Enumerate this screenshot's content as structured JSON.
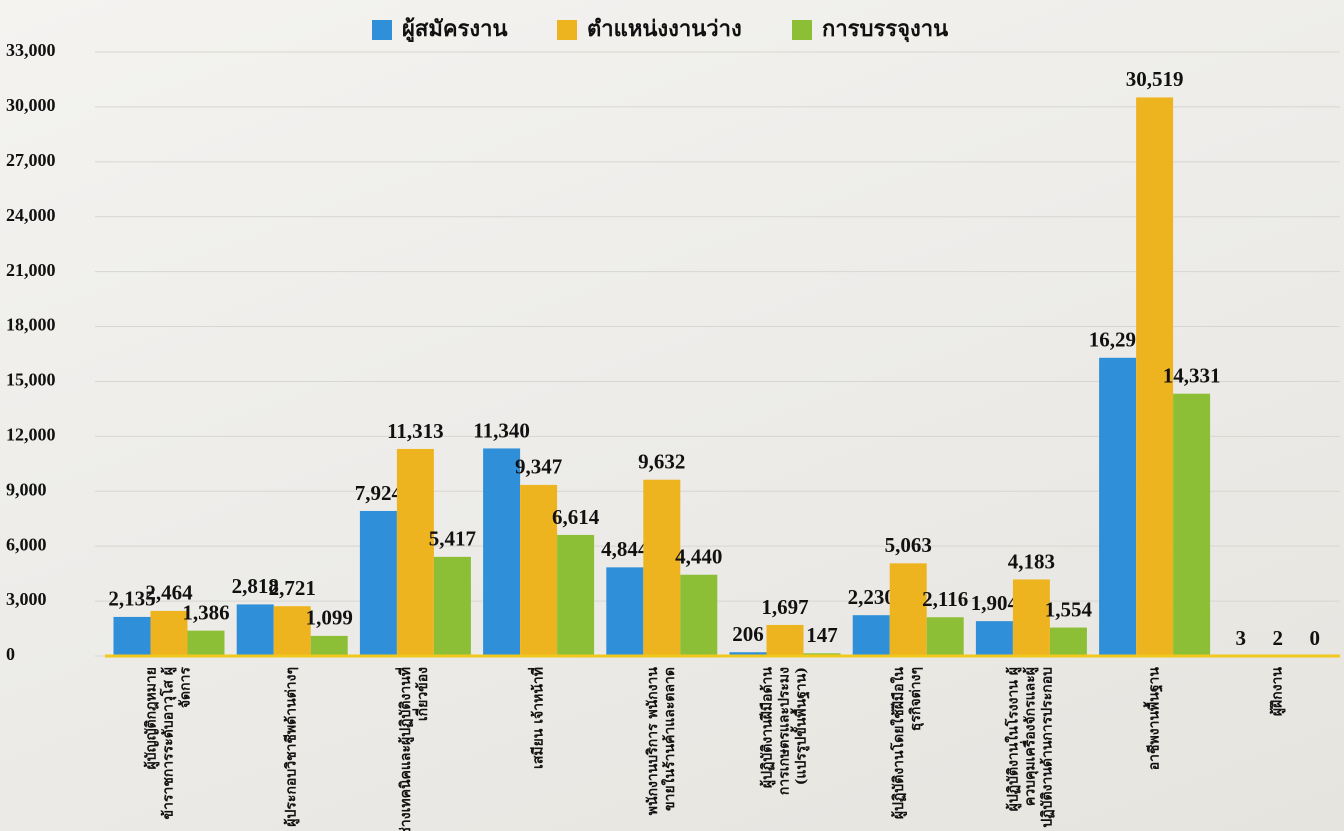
{
  "chart_data": {
    "type": "bar",
    "categories": [
      "ผู้บัญญัติกฎหมาย ข้าราชการระดับอาวุโส ผู้จัดการ",
      "ผู้ประกอบวิชาชีพด้านต่างๆ",
      "ช่างเทคนิคและผู้ปฏิบัติงานที่เกี่ยวข้อง",
      "เสมียน เจ้าหน้าที่",
      "พนักงานบริการ พนักงานขายในร้านค้าและตลาด",
      "ผู้ปฏิบัติงานฝีมือด้านการเกษตรและประมง (แปรรูปขั้นพื้นฐาน)",
      "ผู้ปฏิบัติงานโดยใช้ฝีมือในธุรกิจต่างๆ",
      "ผู้ปฏิบัติงานในโรงงาน ผู้ควบคุมเครื่องจักรและผู้ปฏิบัติงานด้านการประกอบ",
      "อาชีพงานพื้นฐาน",
      "ผู้ฝึกงาน"
    ],
    "series": [
      {
        "name": "ผู้สมัครงาน",
        "color": "#2f8fd8",
        "values": [
          2135,
          2818,
          7924,
          11340,
          4844,
          206,
          2230,
          1904,
          16293,
          3
        ],
        "value_labels": [
          "2,135",
          "2,818",
          "7,924",
          "11,340",
          "4,844",
          "206",
          "2,230",
          "1,904",
          "16,293",
          "3"
        ]
      },
      {
        "name": "ตำแหน่งงานว่าง",
        "color": "#eeb420",
        "values": [
          2464,
          2721,
          11313,
          9347,
          9632,
          1697,
          5063,
          4183,
          30519,
          2
        ],
        "value_labels": [
          "2,464",
          "2,721",
          "11,313",
          "9,347",
          "9,632",
          "1,697",
          "5,063",
          "4,183",
          "30,519",
          "2"
        ]
      },
      {
        "name": "การบรรจุงาน",
        "color": "#8cbf36",
        "values": [
          1386,
          1099,
          5417,
          6614,
          4440,
          147,
          2116,
          1554,
          14331,
          0
        ],
        "value_labels": [
          "1,386",
          "1,099",
          "5,417",
          "6,614",
          "4,440",
          "147",
          "2,116",
          "1,554",
          "14,331",
          "0"
        ]
      }
    ],
    "ylim": [
      0,
      33000
    ],
    "yticks": [
      0,
      {
        "value": 3000,
        "label": "3,000"
      },
      {
        "value": 6000,
        "label": "6,000"
      },
      {
        "value": 9000,
        "label": "9,000"
      },
      {
        "value": 12000,
        "label": "12,000"
      },
      {
        "value": 15000,
        "label": "15,000"
      },
      {
        "value": 18000,
        "label": "18,000"
      },
      {
        "value": 21000,
        "label": "21,000"
      },
      {
        "value": 24000,
        "label": "24,000"
      },
      {
        "value": 27000,
        "label": "27,000"
      },
      {
        "value": 30000,
        "label": "30,000"
      },
      {
        "value": 33000,
        "label": "33,000"
      }
    ],
    "grid": true,
    "legend": "top"
  }
}
